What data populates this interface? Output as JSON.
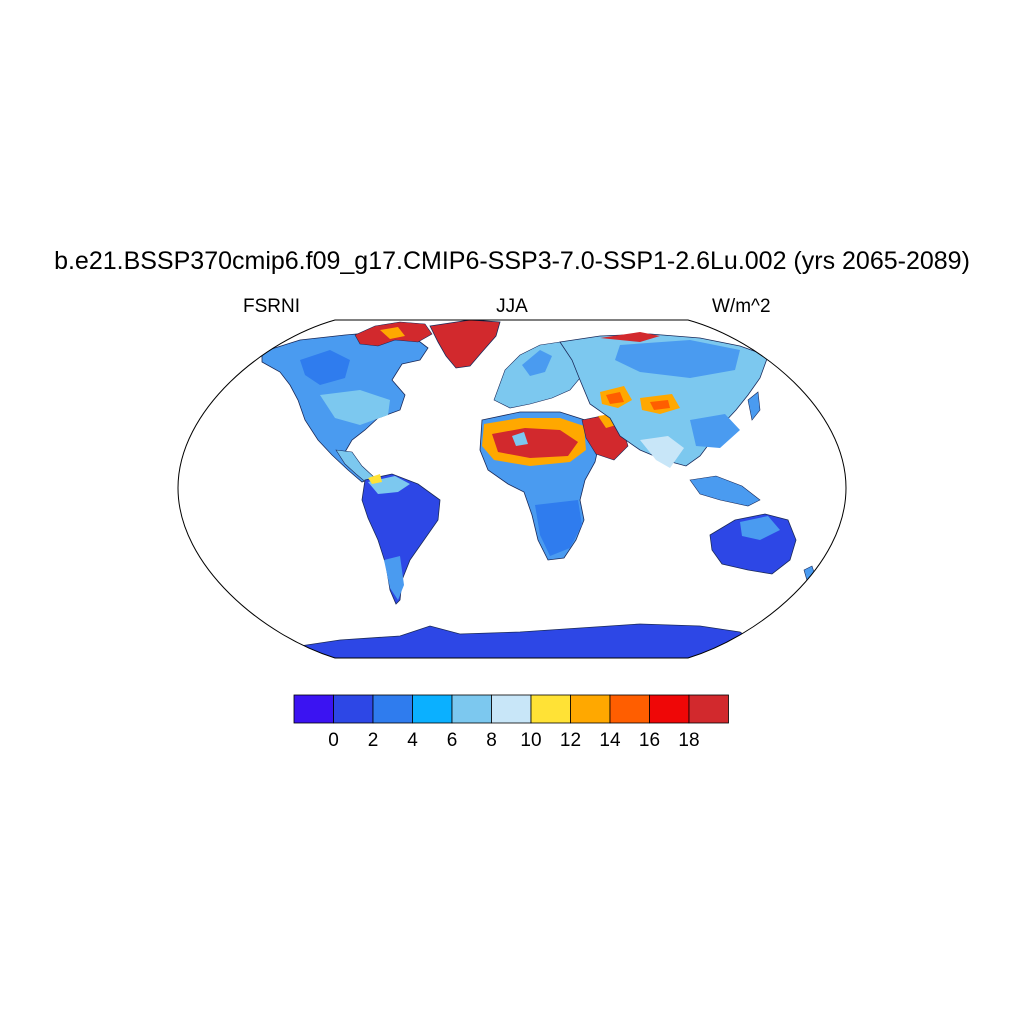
{
  "title": "b.e21.BSSP370cmip6.f09_g17.CMIP6-SSP3-7.0-SSP1-2.6Lu.002 (yrs 2065-2089)",
  "left_string": "FSRNI",
  "center_string": "JJA",
  "right_string": "W/m^2",
  "colorbar": {
    "colors": [
      "#3b13f2",
      "#2d47e6",
      "#2f7cee",
      "#0bb0ff",
      "#7cc8ef",
      "#c8e6f8",
      "#ffe236",
      "#ffa800",
      "#ff5e00",
      "#ef0707",
      "#d2292d"
    ],
    "labels": [
      "0",
      "2",
      "4",
      "6",
      "8",
      "10",
      "12",
      "14",
      "16",
      "18"
    ]
  }
}
